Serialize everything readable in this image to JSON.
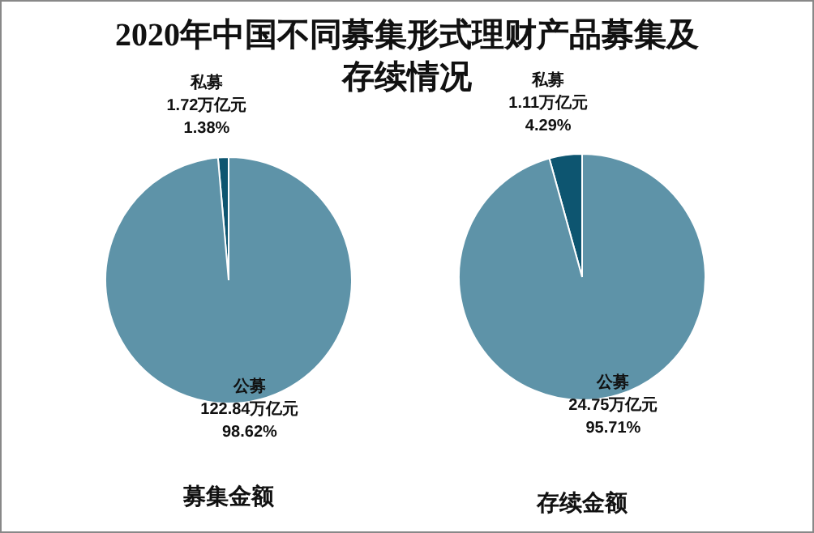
{
  "chart_data": [
    {
      "type": "pie",
      "title": "2020年中国不同募集形式理财产品募集及存续情况",
      "xlabel": "募集金额",
      "categories": [
        "私募",
        "公募"
      ],
      "values": [
        1.72,
        122.84
      ],
      "colors": [
        "#0d5570",
        "#5e93a8"
      ],
      "value_labels": [
        "1.72万亿元\n1.38%",
        "122.84万亿元\n98.62%"
      ]
    },
    {
      "type": "pie",
      "xlabel": "存续金额",
      "categories": [
        "私募",
        "公募"
      ],
      "values": [
        1.11,
        24.75
      ],
      "colors": [
        "#0d5570",
        "#5e93a8"
      ],
      "value_labels": [
        "1.11万亿元\n4.29%",
        "24.75万亿元\n95.71%"
      ]
    }
  ]
}
